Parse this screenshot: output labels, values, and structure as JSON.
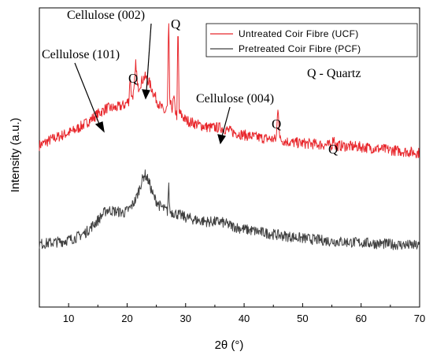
{
  "chart_data": {
    "type": "line",
    "xlabel": "2θ (°)",
    "ylabel": "Intensity (a.u.)",
    "xlim": [
      5,
      70
    ],
    "xticks": [
      10,
      20,
      30,
      40,
      50,
      60,
      70
    ],
    "ylim": [
      0,
      100
    ],
    "grid": false,
    "legend_position": "top-right",
    "series": [
      {
        "name": "Untreated Coir Fibre (UCF)",
        "color": "#e8262b",
        "points": [
          [
            5,
            54
          ],
          [
            7,
            56
          ],
          [
            9,
            57.5
          ],
          [
            11,
            59
          ],
          [
            13,
            61.5
          ],
          [
            15,
            64.5
          ],
          [
            16.5,
            66.5
          ],
          [
            18,
            66.5
          ],
          [
            19.5,
            67.5
          ],
          [
            20.3,
            69
          ],
          [
            20.5,
            77
          ],
          [
            20.8,
            70
          ],
          [
            21.2,
            72
          ],
          [
            21.5,
            82
          ],
          [
            21.8,
            73
          ],
          [
            22.5,
            75.5
          ],
          [
            23,
            77
          ],
          [
            23.7,
            75.5
          ],
          [
            24.5,
            71.5
          ],
          [
            25.5,
            67.5
          ],
          [
            26.5,
            65
          ],
          [
            26.9,
            67
          ],
          [
            27.1,
            97
          ],
          [
            27.3,
            68
          ],
          [
            27.7,
            66.5
          ],
          [
            28,
            70
          ],
          [
            28.2,
            66
          ],
          [
            28.5,
            64
          ],
          [
            28.7,
            96
          ],
          [
            28.9,
            65
          ],
          [
            30,
            62.5
          ],
          [
            32,
            61
          ],
          [
            34,
            60
          ],
          [
            36,
            60
          ],
          [
            38,
            58.5
          ],
          [
            40,
            57.5
          ],
          [
            43,
            56.5
          ],
          [
            45.5,
            56
          ],
          [
            45.8,
            68
          ],
          [
            46.1,
            56
          ],
          [
            48,
            55
          ],
          [
            52,
            54.5
          ],
          [
            55,
            54
          ],
          [
            55.3,
            57
          ],
          [
            55.6,
            54
          ],
          [
            60,
            53.5
          ],
          [
            65,
            52.5
          ],
          [
            70,
            51.5
          ]
        ]
      },
      {
        "name": "Pretreated Coir Fibre (PCF)",
        "color": "#404040",
        "points": [
          [
            5,
            21
          ],
          [
            7,
            21.5
          ],
          [
            9,
            22
          ],
          [
            11,
            23
          ],
          [
            13,
            25
          ],
          [
            15,
            29
          ],
          [
            16.5,
            32.5
          ],
          [
            18,
            32
          ],
          [
            19.5,
            31.5
          ],
          [
            20.5,
            33
          ],
          [
            21.5,
            36
          ],
          [
            22.5,
            42
          ],
          [
            23,
            44.5
          ],
          [
            23.7,
            42
          ],
          [
            24.5,
            37
          ],
          [
            25.5,
            34
          ],
          [
            26.5,
            32.5
          ],
          [
            26.9,
            32
          ],
          [
            27.1,
            41
          ],
          [
            27.3,
            32
          ],
          [
            28,
            31.5
          ],
          [
            30,
            30
          ],
          [
            32,
            29
          ],
          [
            34,
            28.5
          ],
          [
            36,
            28.5
          ],
          [
            38,
            27
          ],
          [
            40,
            26
          ],
          [
            43,
            25
          ],
          [
            46,
            24
          ],
          [
            50,
            23
          ],
          [
            55,
            22
          ],
          [
            60,
            21.5
          ],
          [
            65,
            21
          ],
          [
            70,
            20.5
          ]
        ]
      }
    ],
    "annotations": {
      "c101": "Cellulose (101)",
      "c002": "Cellulose (002)",
      "c004": "Cellulose (004)",
      "q": "Q",
      "legend_note": "Q - Quartz"
    }
  }
}
